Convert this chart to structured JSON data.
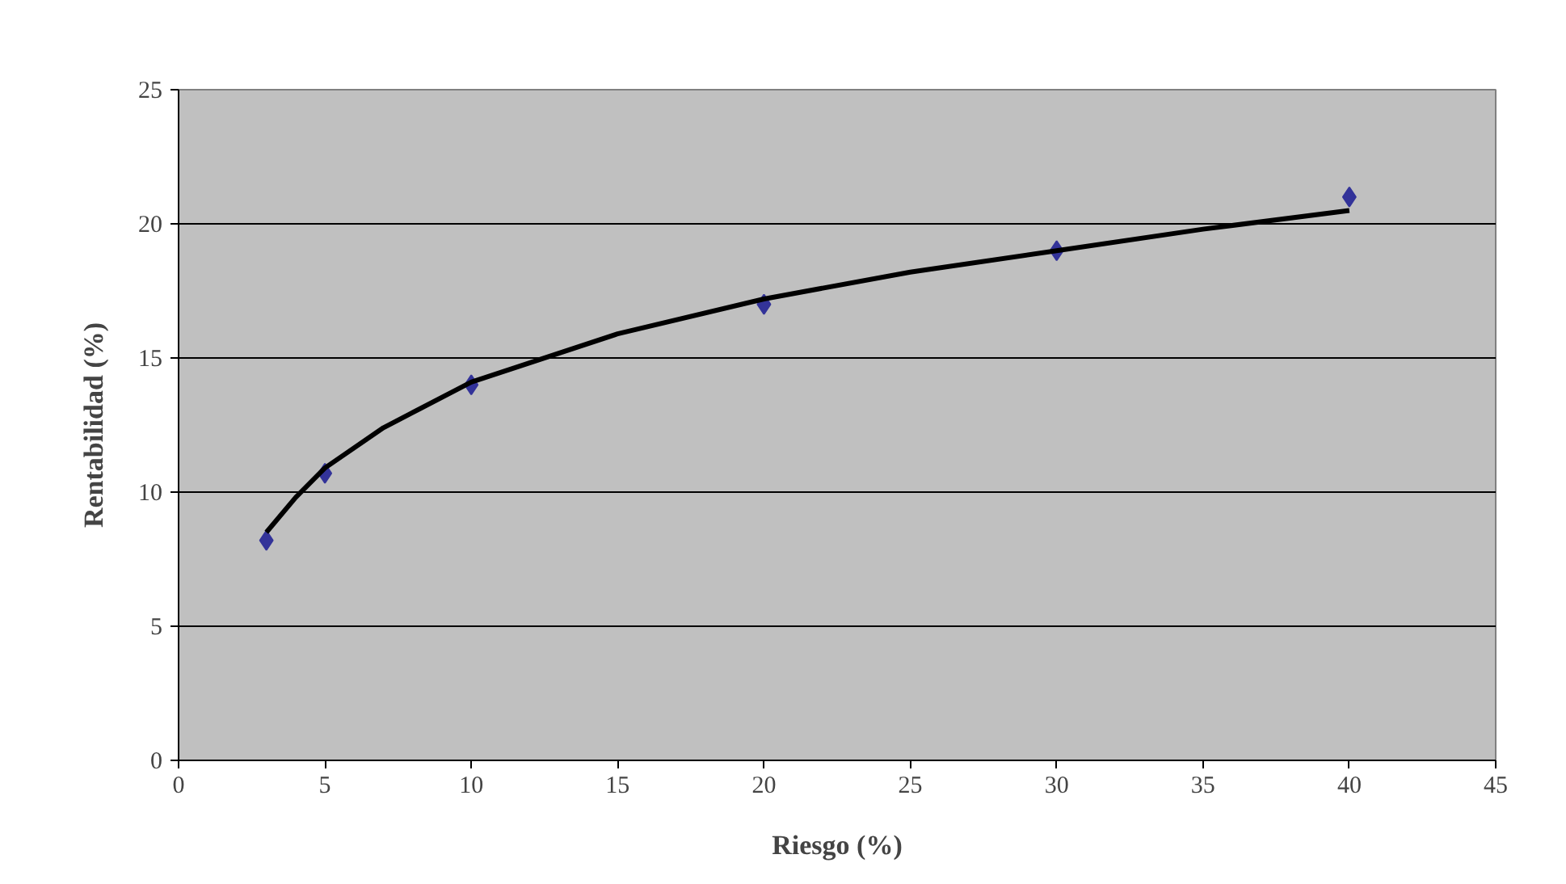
{
  "chart_data": {
    "type": "scatter",
    "xlabel": "Riesgo (%)",
    "ylabel": "Rentabilidad (%)",
    "xlim": [
      0,
      45
    ],
    "ylim": [
      0,
      25
    ],
    "xticks": [
      0,
      5,
      10,
      15,
      20,
      25,
      30,
      35,
      40,
      45
    ],
    "yticks": [
      0,
      5,
      10,
      15,
      20,
      25
    ],
    "grid": "y",
    "marker": "diamond",
    "series": [
      {
        "color": "#333399",
        "x": [
          3,
          5,
          10,
          20,
          30,
          40
        ],
        "values": [
          8.2,
          10.7,
          14,
          17,
          19,
          21
        ]
      },
      {
        "type": "line",
        "color": "#000000",
        "marker": "none",
        "line_style": "solid",
        "x": [
          3,
          4,
          5,
          7,
          10,
          15,
          20,
          25,
          30,
          35,
          40
        ],
        "values": [
          8.5,
          9.8,
          10.9,
          12.4,
          14.1,
          15.9,
          17.2,
          18.2,
          19.0,
          19.8,
          20.5
        ]
      }
    ]
  }
}
